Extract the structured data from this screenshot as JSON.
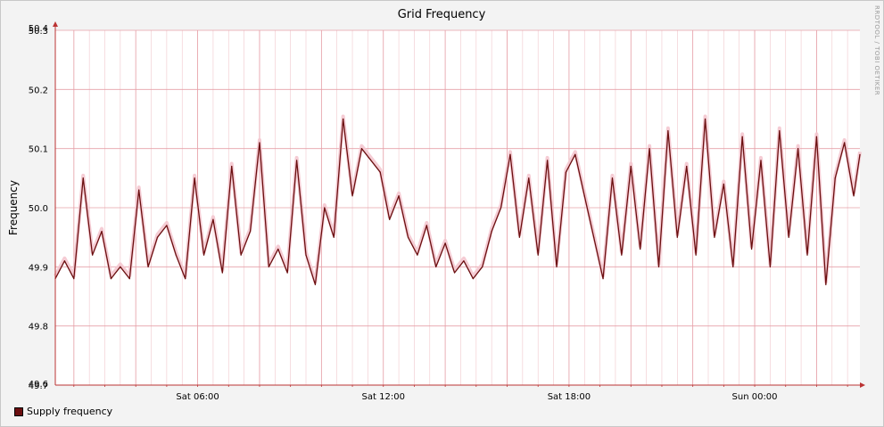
{
  "chart_data": {
    "type": "line",
    "title": "Grid Frequency",
    "ylabel": "Frequency",
    "ylim": [
      49.7,
      50.3
    ],
    "yticks": [
      {
        "value": 49.7,
        "label": "49.7"
      },
      {
        "value": 49.8,
        "label": "49.8"
      },
      {
        "value": 49.9,
        "label": "49.9"
      },
      {
        "value": 50.0,
        "label": "50.0"
      },
      {
        "value": 50.1,
        "label": "50.1"
      },
      {
        "value": 50.2,
        "label": "50.2"
      },
      {
        "value": 50.3,
        "label": "50.3"
      }
    ],
    "ytick_overlap_labels": {
      "top": "50.4",
      "bottom": "49.6"
    },
    "xlim_hours": [
      0.0,
      26.0
    ],
    "xticks": [
      {
        "hour": 4.6,
        "label": "Sat 06:00"
      },
      {
        "hour": 10.6,
        "label": "Sat 12:00"
      },
      {
        "hour": 16.6,
        "label": "Sat 18:00"
      },
      {
        "hour": 22.6,
        "label": "Sun 00:00"
      }
    ],
    "series": [
      {
        "name": "Supply frequency",
        "color": "#6b0f10",
        "band_color": "#f4c7cf",
        "x": [
          0.0,
          0.3,
          0.6,
          0.9,
          1.2,
          1.5,
          1.8,
          2.1,
          2.4,
          2.7,
          3.0,
          3.3,
          3.6,
          3.9,
          4.2,
          4.5,
          4.8,
          5.1,
          5.4,
          5.7,
          6.0,
          6.3,
          6.6,
          6.9,
          7.2,
          7.5,
          7.8,
          8.1,
          8.4,
          8.7,
          9.0,
          9.3,
          9.6,
          9.9,
          10.2,
          10.5,
          10.8,
          11.1,
          11.4,
          11.7,
          12.0,
          12.3,
          12.6,
          12.9,
          13.2,
          13.5,
          13.8,
          14.1,
          14.4,
          14.7,
          15.0,
          15.3,
          15.6,
          15.9,
          16.2,
          16.5,
          16.8,
          17.1,
          17.4,
          17.7,
          18.0,
          18.3,
          18.6,
          18.9,
          19.2,
          19.5,
          19.8,
          20.1,
          20.4,
          20.7,
          21.0,
          21.3,
          21.6,
          21.9,
          22.2,
          22.5,
          22.8,
          23.1,
          23.4,
          23.7,
          24.0,
          24.3,
          24.6,
          24.9,
          25.2,
          25.5,
          25.8,
          26.0
        ],
        "values": [
          49.88,
          49.91,
          49.88,
          50.05,
          49.92,
          49.96,
          49.88,
          49.9,
          49.88,
          50.03,
          49.9,
          49.95,
          49.97,
          49.92,
          49.88,
          50.05,
          49.92,
          49.98,
          49.89,
          50.07,
          49.92,
          49.96,
          50.11,
          49.9,
          49.93,
          49.89,
          50.08,
          49.92,
          49.87,
          50.0,
          49.95,
          50.15,
          50.02,
          50.1,
          50.08,
          50.06,
          49.98,
          50.02,
          49.95,
          49.92,
          49.97,
          49.9,
          49.94,
          49.89,
          49.91,
          49.88,
          49.9,
          49.96,
          50.0,
          50.09,
          49.95,
          50.05,
          49.92,
          50.08,
          49.9,
          50.06,
          50.09,
          50.02,
          49.95,
          49.88,
          50.05,
          49.92,
          50.07,
          49.93,
          50.1,
          49.9,
          50.13,
          49.95,
          50.07,
          49.92,
          50.15,
          49.95,
          50.04,
          49.9,
          50.12,
          49.93,
          50.08,
          49.9,
          50.13,
          49.95,
          50.1,
          49.92,
          50.12,
          49.87,
          50.05,
          50.11,
          50.02,
          50.09
        ]
      }
    ],
    "grid": true,
    "legend": "bottom-left"
  },
  "watermark": "RRDTOOL / TOBI OETIKER"
}
